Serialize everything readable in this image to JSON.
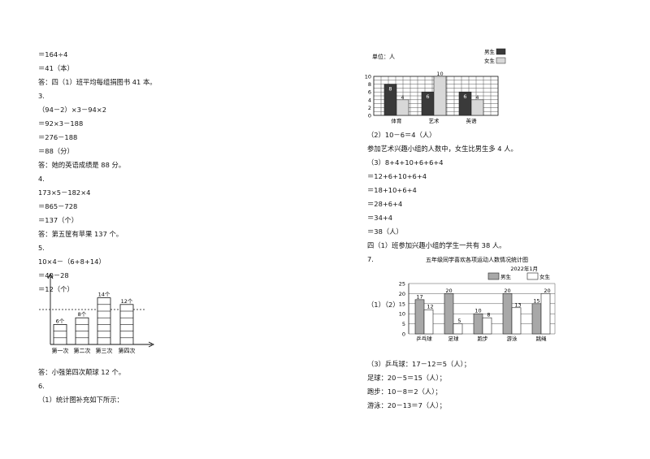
{
  "left": {
    "lines": [
      "＝164÷4",
      "＝41（本）",
      "答：四（1）班平均每组捐图书 41 本。",
      "3.",
      "（94－2）×3－94×2",
      "＝92×3－188",
      "＝276－188",
      "＝88（分）",
      "答：她的英语成绩是 88 分。",
      "4.",
      "173×5－182×4",
      "＝865－728",
      "＝137（个）",
      "答：第五筐有苹果 137 个。",
      "5.",
      "10×4－（6+8+14）",
      "＝40－28",
      "＝12（个）"
    ],
    "bottom_lines": [
      "答：小强第四次颠球 12 个。",
      "6.",
      "（1）统计图补充如下所示："
    ],
    "stack_chart": {
      "categories": [
        "第一次",
        "第二次",
        "第三次",
        "第四次"
      ],
      "value_labels": [
        "6个",
        "8个",
        "14个",
        "12个"
      ],
      "values": [
        6,
        8,
        14,
        12
      ],
      "average": 10
    }
  },
  "right": {
    "lines": [
      "（2）10－6＝4（人）",
      "参加艺术兴趣小组的人数中，女生比男生多 4 人。",
      "（3）8+4+10+6+6+4",
      "＝12+6+10+6+4",
      "＝18+10+6+4",
      "＝28+6+4",
      "＝34+4",
      "＝38（人）",
      "四（1）班参加兴趣小组的学生一共有 38 人。",
      "7."
    ],
    "label_12": "（1）（2）",
    "bottom_lines": [
      "（3）乒乓球：17－12＝5（人）；",
      "足球：20－5＝15（人）；",
      "跑步：10－8＝2（人）；",
      "游泳：20－13＝7（人）；"
    ]
  },
  "chart_data": [
    {
      "type": "bar",
      "title": "",
      "unit_label": "单位：人",
      "categories": [
        "体育",
        "艺术",
        "英语"
      ],
      "series": [
        {
          "name": "男生",
          "values": [
            8,
            6,
            6
          ],
          "color": "#3a3a3a"
        },
        {
          "name": "女生",
          "values": [
            4,
            10,
            4
          ],
          "color": "#d8d8d8"
        }
      ],
      "ylim": [
        0,
        10
      ],
      "yticks": [
        "0",
        "2",
        "4",
        "6",
        "8",
        "10"
      ],
      "grid": true,
      "legend": "top-right"
    },
    {
      "type": "bar",
      "title": "五年级同学喜欢各项运动人数情况统计图",
      "subtitle": "2022年1月",
      "categories": [
        "乒乓球",
        "足球",
        "跑步",
        "游泳",
        "跳绳"
      ],
      "series": [
        {
          "name": "男生",
          "values": [
            17,
            20,
            10,
            20,
            15
          ],
          "color": "#a8a8a8"
        },
        {
          "name": "女生",
          "values": [
            12,
            5,
            8,
            13,
            20
          ],
          "color": "#ffffff"
        }
      ],
      "ylim": [
        0,
        25
      ],
      "yticks": [
        "0",
        "5",
        "10",
        "15",
        "20",
        "25"
      ],
      "grid": true,
      "legend": "top-right"
    },
    {
      "type": "bar",
      "title": "",
      "categories": [
        "第一次",
        "第二次",
        "第三次",
        "第四次"
      ],
      "values": [
        6,
        8,
        14,
        12
      ],
      "value_labels": [
        "6个",
        "8个",
        "14个",
        "12个"
      ]
    }
  ]
}
